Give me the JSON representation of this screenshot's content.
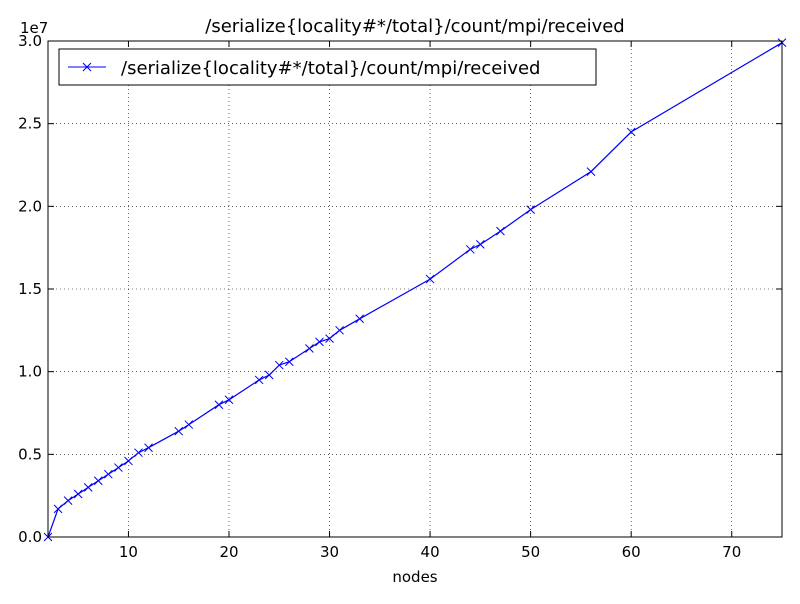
{
  "chart_data": {
    "type": "line",
    "title": "/serialize{locality#*/total}/count/mpi/received",
    "xlabel": "nodes",
    "ylabel": "",
    "y_offset_label": "1e7",
    "xlim": [
      2,
      75
    ],
    "ylim": [
      0,
      3.0
    ],
    "x_ticks": [
      10,
      20,
      30,
      40,
      50,
      60,
      70
    ],
    "y_ticks": [
      "0.0",
      "0.5",
      "1.0",
      "1.5",
      "2.0",
      "2.5",
      "3.0"
    ],
    "grid": true,
    "legend_position": "top-left",
    "series": [
      {
        "name": "/serialize{locality#*/total}/count/mpi/received",
        "color": "#0000ff",
        "marker": "x",
        "x": [
          2,
          3,
          4,
          5,
          6,
          7,
          8,
          9,
          10,
          11,
          12,
          15,
          16,
          19,
          20,
          23,
          24,
          25,
          26,
          28,
          29,
          30,
          31,
          33,
          40,
          44,
          45,
          47,
          50,
          56,
          60,
          75
        ],
        "y": [
          0.0,
          0.17,
          0.22,
          0.26,
          0.3,
          0.34,
          0.38,
          0.42,
          0.46,
          0.51,
          0.54,
          0.64,
          0.68,
          0.8,
          0.83,
          0.95,
          0.98,
          1.04,
          1.06,
          1.14,
          1.18,
          1.2,
          1.25,
          1.32,
          1.56,
          1.74,
          1.77,
          1.85,
          1.98,
          2.21,
          2.45,
          2.99
        ]
      }
    ]
  }
}
